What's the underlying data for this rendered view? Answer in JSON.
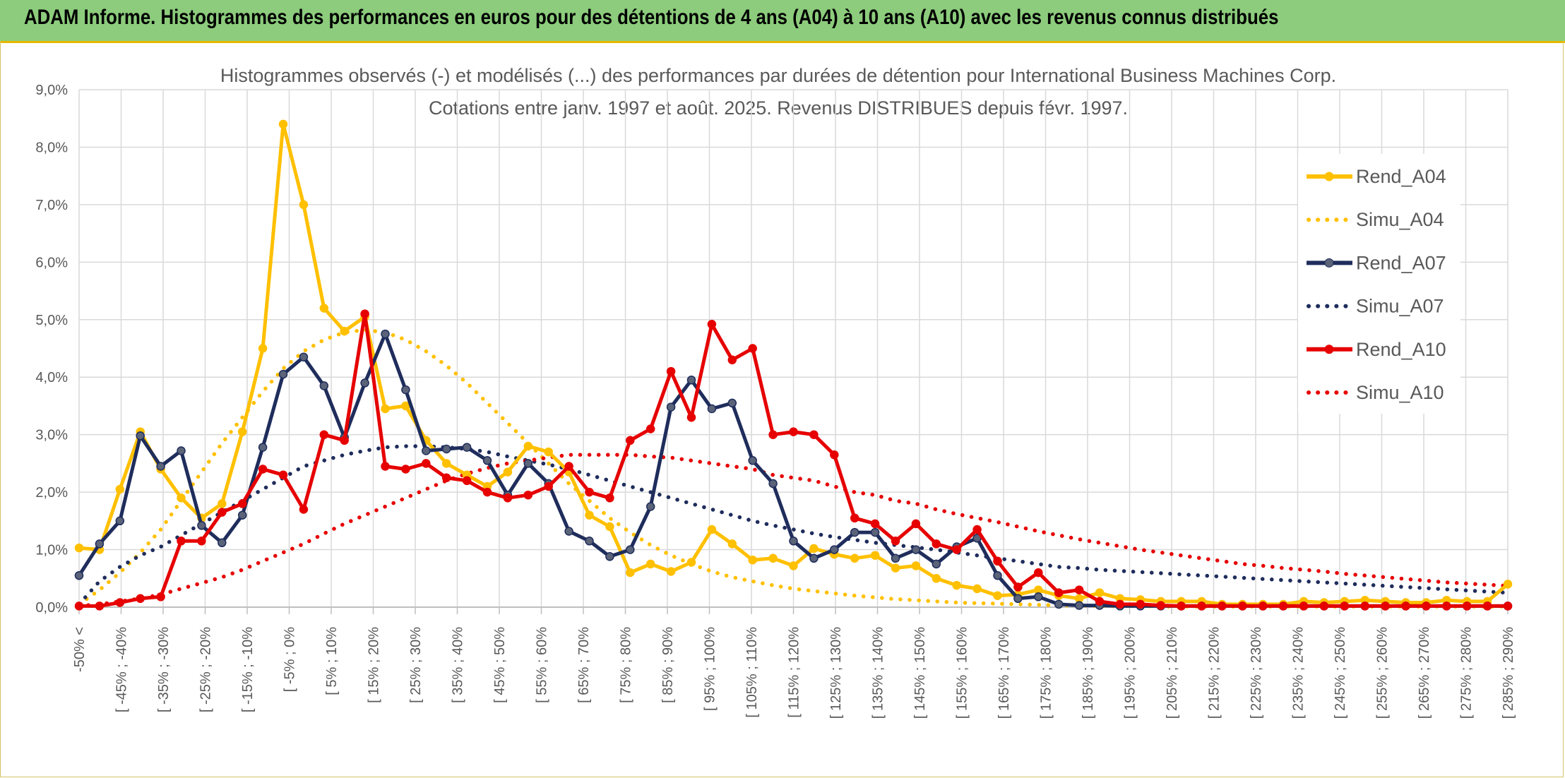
{
  "header": {
    "title": "ADAM Informe. Histogrammes des performances en euros pour des détentions de 4 ans (A04) à 10 ans (A10) avec les revenus connus distribués"
  },
  "chart_data": {
    "type": "line",
    "title": "Histogrammes observés (-) et modélisés (...) des performances par durées de détention pour International Business Machines Corp.",
    "subtitle": "Cotations entre janv. 1997 et août. 2025. Revenus DISTRIBUES depuis févr. 1997.",
    "xlabel": "",
    "ylabel": "",
    "ylim": [
      0,
      9
    ],
    "y_ticks": [
      "0,0%",
      "1,0%",
      "2,0%",
      "3,0%",
      "4,0%",
      "5,0%",
      "6,0%",
      "7,0%",
      "8,0%",
      "9,0%"
    ],
    "grid": true,
    "legend_position": "right",
    "x_labels": [
      "-50% <",
      "[ -45% ; -40%",
      "[ -35% ; -30%",
      "[ -25% ; -20%",
      "[ -15% ; -10%",
      "[ -5% ; 0%",
      "[ 5% ; 10%",
      "[ 15% ; 20%",
      "[ 25% ; 30%",
      "[ 35% ; 40%",
      "[ 45% ; 50%",
      "[ 55% ; 60%",
      "[ 65% ; 70%",
      "[ 75% ; 80%",
      "[ 85% ; 90%",
      "[ 95% ; 100%",
      "[ 105% ; 110%",
      "[ 115% ; 120%",
      "[ 125% ; 130%",
      "[ 135% ; 140%",
      "[ 145% ; 150%",
      "[ 155% ; 160%",
      "[ 165% ; 170%",
      "[ 175% ; 180%",
      "[ 185% ; 190%",
      "[ 195% ; 200%",
      "[ 205% ; 210%",
      "[ 215% ; 220%",
      "[ 225% ; 230%",
      "[ 235% ; 240%",
      "[ 245% ; 250%",
      "[ 255% ; 260%",
      "[ 265% ; 270%",
      "[ 275% ; 280%",
      "[ 285% ; 290%"
    ],
    "series": [
      {
        "name": "Rend_A04",
        "style": "solid",
        "color": "#ffc000",
        "values": [
          1.03,
          1.0,
          2.05,
          3.05,
          2.4,
          1.9,
          1.55,
          1.8,
          3.05,
          4.5,
          8.4,
          7.0,
          5.2,
          4.8,
          5.05,
          3.45,
          3.5,
          2.9,
          2.5,
          2.3,
          2.1,
          2.35,
          2.8,
          2.7,
          2.35,
          1.6,
          1.4,
          0.6,
          0.75,
          0.62,
          0.78,
          1.35,
          1.1,
          0.82,
          0.85,
          0.72,
          1.02,
          0.92,
          0.85,
          0.9,
          0.68,
          0.72,
          0.5,
          0.38,
          0.32,
          0.2,
          0.22,
          0.3,
          0.2,
          0.15,
          0.25,
          0.15,
          0.13,
          0.1,
          0.1,
          0.1,
          0.05,
          0.05,
          0.05,
          0.05,
          0.1,
          0.08,
          0.1,
          0.12,
          0.1,
          0.08,
          0.08,
          0.12,
          0.1,
          0.1,
          0.4
        ]
      },
      {
        "name": "Simu_A04",
        "style": "dotted",
        "color": "#ffc000",
        "values": [
          0.05,
          0.3,
          0.6,
          0.95,
          1.35,
          1.85,
          2.35,
          2.85,
          3.3,
          3.75,
          4.15,
          4.45,
          4.65,
          4.78,
          4.82,
          4.78,
          4.65,
          4.45,
          4.2,
          3.9,
          3.55,
          3.2,
          2.85,
          2.5,
          2.15,
          1.85,
          1.55,
          1.3,
          1.08,
          0.9,
          0.75,
          0.62,
          0.52,
          0.45,
          0.38,
          0.32,
          0.28,
          0.24,
          0.2,
          0.17,
          0.14,
          0.12,
          0.1,
          0.08,
          0.07,
          0.06,
          0.05,
          0.04,
          0.03,
          0.03,
          0.02,
          0.02,
          0.02,
          0.01,
          0.01,
          0.01,
          0.01,
          0.01,
          0.01,
          0.01,
          0.01,
          0.01,
          0.01,
          0.01,
          0.01,
          0.01,
          0.01,
          0.01,
          0.01,
          0.01,
          0.01
        ]
      },
      {
        "name": "Rend_A07",
        "style": "solid",
        "color": "#1f2d5c",
        "values": [
          0.55,
          1.1,
          1.5,
          2.98,
          2.45,
          2.72,
          1.42,
          1.12,
          1.6,
          2.78,
          4.05,
          4.35,
          3.85,
          2.95,
          3.9,
          4.75,
          3.78,
          2.72,
          2.75,
          2.78,
          2.55,
          1.95,
          2.5,
          2.15,
          1.32,
          1.15,
          0.88,
          1.0,
          1.75,
          3.48,
          3.95,
          3.45,
          3.55,
          2.55,
          2.15,
          1.15,
          0.85,
          1.0,
          1.3,
          1.3,
          0.85,
          1.0,
          0.75,
          1.05,
          1.2,
          0.55,
          0.15,
          0.18,
          0.05,
          0.03,
          0.03,
          0.02,
          0.02,
          0.02,
          0.02,
          0.02,
          0.02,
          0.02,
          0.02,
          0.02,
          0.02,
          0.02,
          0.02,
          0.02,
          0.02,
          0.02,
          0.02,
          0.02,
          0.02,
          0.02,
          0.02
        ]
      },
      {
        "name": "Simu_A07",
        "style": "dotted",
        "color": "#1f2d5c",
        "values": [
          0.05,
          0.45,
          0.7,
          0.9,
          1.05,
          1.25,
          1.45,
          1.65,
          1.85,
          2.05,
          2.25,
          2.45,
          2.55,
          2.65,
          2.72,
          2.78,
          2.8,
          2.8,
          2.78,
          2.75,
          2.7,
          2.62,
          2.55,
          2.48,
          2.4,
          2.3,
          2.2,
          2.1,
          2.0,
          1.9,
          1.8,
          1.7,
          1.6,
          1.5,
          1.42,
          1.35,
          1.28,
          1.22,
          1.17,
          1.12,
          1.08,
          1.04,
          1.0,
          0.95,
          0.9,
          0.85,
          0.8,
          0.75,
          0.7,
          0.68,
          0.65,
          0.63,
          0.61,
          0.59,
          0.57,
          0.55,
          0.53,
          0.51,
          0.49,
          0.47,
          0.45,
          0.43,
          0.41,
          0.39,
          0.37,
          0.35,
          0.33,
          0.31,
          0.29,
          0.27,
          0.25
        ]
      },
      {
        "name": "Rend_A10",
        "style": "solid",
        "color": "#e60000",
        "values": [
          0.02,
          0.02,
          0.08,
          0.15,
          0.18,
          1.15,
          1.15,
          1.65,
          1.8,
          2.4,
          2.3,
          1.7,
          3.0,
          2.9,
          5.1,
          2.45,
          2.4,
          2.5,
          2.25,
          2.2,
          2.0,
          1.9,
          1.95,
          2.1,
          2.45,
          2.0,
          1.9,
          2.9,
          3.1,
          4.1,
          3.3,
          4.92,
          4.3,
          4.5,
          3.0,
          3.05,
          3.0,
          2.65,
          1.55,
          1.45,
          1.15,
          1.45,
          1.1,
          1.0,
          1.35,
          0.8,
          0.35,
          0.6,
          0.25,
          0.3,
          0.1,
          0.05,
          0.05,
          0.03,
          0.02,
          0.02,
          0.02,
          0.02,
          0.02,
          0.02,
          0.02,
          0.02,
          0.02,
          0.02,
          0.02,
          0.02,
          0.02,
          0.02,
          0.02,
          0.02,
          0.02
        ]
      },
      {
        "name": "Simu_A10",
        "style": "dotted",
        "color": "#e60000",
        "values": [
          0.02,
          0.05,
          0.1,
          0.15,
          0.22,
          0.32,
          0.42,
          0.52,
          0.65,
          0.8,
          0.95,
          1.1,
          1.28,
          1.45,
          1.6,
          1.75,
          1.9,
          2.05,
          2.2,
          2.32,
          2.42,
          2.5,
          2.55,
          2.6,
          2.65,
          2.65,
          2.65,
          2.65,
          2.62,
          2.6,
          2.55,
          2.5,
          2.45,
          2.4,
          2.3,
          2.25,
          2.2,
          2.1,
          2.0,
          1.95,
          1.85,
          1.8,
          1.7,
          1.62,
          1.55,
          1.48,
          1.4,
          1.32,
          1.25,
          1.18,
          1.12,
          1.06,
          1.0,
          0.95,
          0.9,
          0.85,
          0.8,
          0.75,
          0.72,
          0.68,
          0.65,
          0.62,
          0.58,
          0.55,
          0.52,
          0.49,
          0.46,
          0.43,
          0.41,
          0.39,
          0.37
        ]
      }
    ]
  }
}
